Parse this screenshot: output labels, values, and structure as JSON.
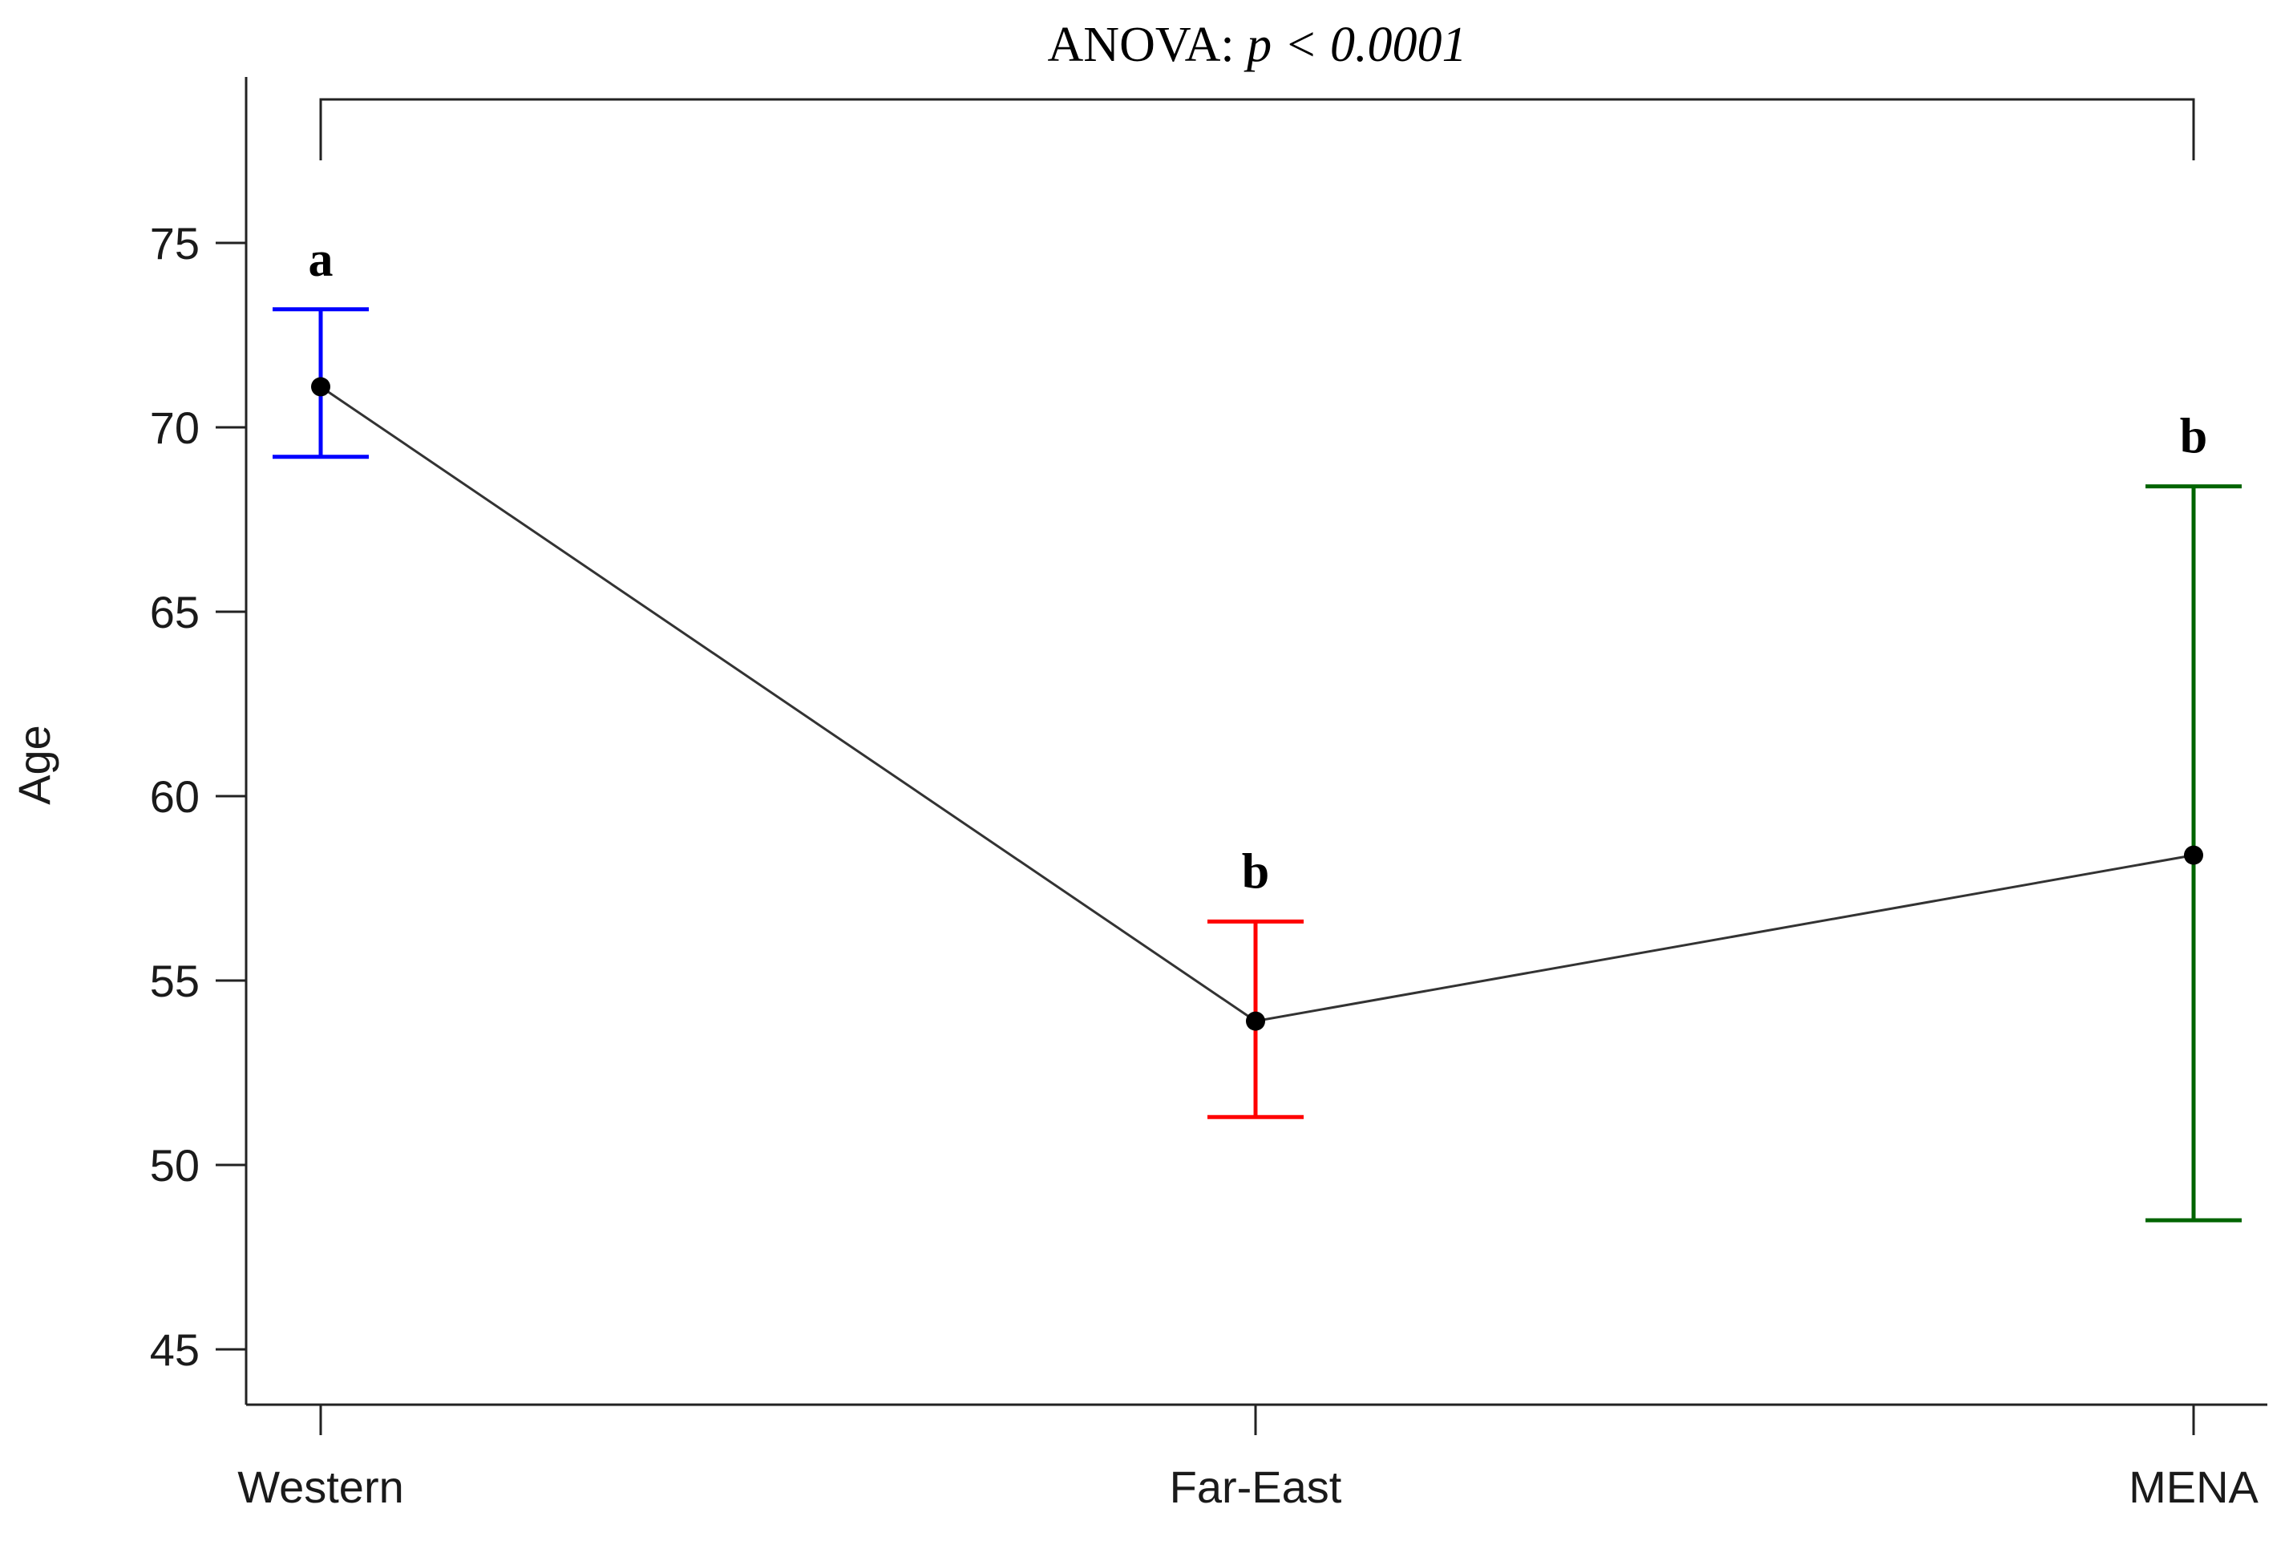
{
  "chart_data": {
    "type": "line",
    "title": "",
    "xlabel": "",
    "ylabel": "Age",
    "ylim": [
      43.5,
      79.5
    ],
    "yticks": [
      45,
      50,
      55,
      60,
      65,
      70,
      75
    ],
    "categories": [
      "Western",
      "Far-East",
      "MENA"
    ],
    "series": [
      {
        "values": [
          71.1,
          53.9,
          58.4
        ],
        "error_low": [
          69.2,
          51.3,
          48.5
        ],
        "error_high": [
          73.2,
          56.6,
          68.4
        ],
        "error_colors": [
          "#0000ff",
          "#ff0000",
          "#006400"
        ],
        "line_color": "#333333",
        "marker_color": "#000000"
      }
    ],
    "group_letters": [
      "a",
      "b",
      "b"
    ],
    "annotation": {
      "prefix": "ANOVA: ",
      "italic": "p < 0.0001"
    },
    "grid": false,
    "legend": "none"
  }
}
